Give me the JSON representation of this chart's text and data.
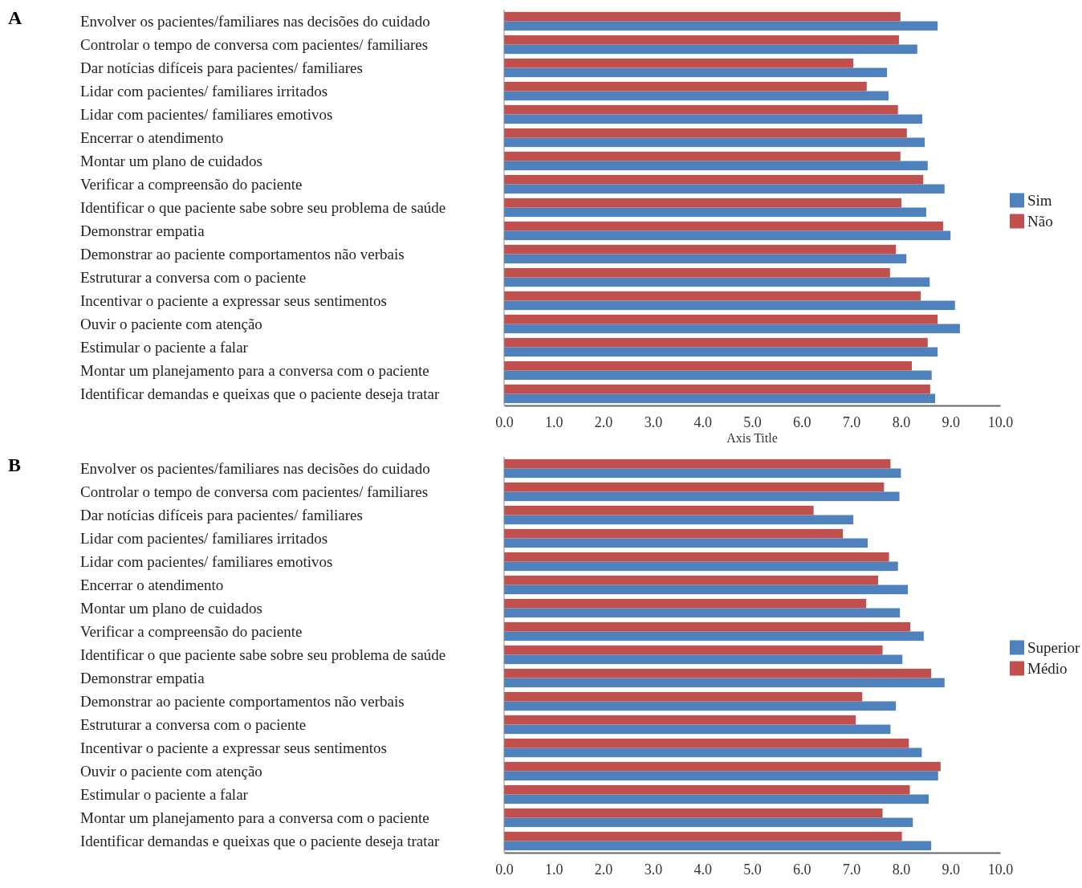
{
  "chart_data": [
    {
      "type": "bar",
      "title": "A",
      "orientation": "horizontal",
      "xlabel": "Axis Title",
      "legend": "right",
      "categories": [
        "Envolver os pacientes/familiares nas decisões do cuidado",
        "Controlar o tempo de conversa com pacientes/ familiares",
        "Dar notícias difíceis para pacientes/ familiares",
        "Lidar com pacientes/ familiares irritados",
        "Lidar com pacientes/ familiares emotivos",
        "Encerrar o atendimento",
        "Montar um plano de cuidados",
        "Verificar a compreensão do paciente",
        "Identificar o que paciente sabe sobre seu problema de saúde",
        "Demonstrar empatia",
        "Demonstrar ao paciente comportamentos não verbais",
        "Estruturar a conversa com o paciente",
        "Incentivar o paciente a expressar seus sentimentos",
        "Ouvir o paciente com atenção",
        "Estimular o paciente a falar",
        "Montar um planejamento para a conversa com o paciente",
        "Identificar demandas e queixas que o paciente deseja tratar"
      ],
      "series": [
        {
          "name": "Sim",
          "color": "#4f81bd",
          "values": [
            8.74,
            8.33,
            7.72,
            7.75,
            8.43,
            8.48,
            8.54,
            8.88,
            8.51,
            9.0,
            8.11,
            8.58,
            9.09,
            9.19,
            8.74,
            8.62,
            8.69
          ]
        },
        {
          "name": "Não",
          "color": "#c0504d",
          "values": [
            7.99,
            7.96,
            7.04,
            7.31,
            7.94,
            8.12,
            7.99,
            8.45,
            8.01,
            8.85,
            7.9,
            7.78,
            8.4,
            8.74,
            8.54,
            8.22,
            8.59
          ]
        }
      ],
      "xlim": [
        0,
        10
      ],
      "xticks": [
        {
          "value": 0,
          "label": "0.0"
        },
        {
          "value": 1,
          "label": "1.0"
        },
        {
          "value": 2,
          "label": "2.0"
        },
        {
          "value": 3,
          "label": "3.0"
        },
        {
          "value": 4,
          "label": "4.0"
        },
        {
          "value": 5,
          "label": "5.0"
        },
        {
          "value": 6,
          "label": "6.0"
        },
        {
          "value": 7,
          "label": "7.0"
        },
        {
          "value": 8,
          "label": "8.0"
        },
        {
          "value": 9,
          "label": "9.0"
        },
        {
          "value": 10,
          "label": "10.0"
        }
      ]
    },
    {
      "type": "bar",
      "title": "B",
      "orientation": "horizontal",
      "legend": "right",
      "categories": [
        "Envolver os pacientes/familiares nas decisões do cuidado",
        "Controlar o tempo de conversa com pacientes/ familiares",
        "Dar notícias difíceis para pacientes/ familiares",
        "Lidar com pacientes/ familiares irritados",
        "Lidar com pacientes/ familiares emotivos",
        "Encerrar o atendimento",
        "Montar um plano de cuidados",
        "Verificar a compreensão do paciente",
        "Identificar o que paciente sabe sobre seu problema de saúde",
        "Demonstrar empatia",
        "Demonstrar ao paciente comportamentos não verbais",
        "Estruturar a conversa com o paciente",
        "Incentivar o paciente a expressar seus sentimentos",
        "Ouvir o paciente com atenção",
        "Estimular o paciente a falar",
        "Montar um planejamento para a conversa com o paciente",
        "Identificar demandas e queixas que o paciente deseja tratar"
      ],
      "series": [
        {
          "name": "Superior",
          "color": "#4f81bd",
          "values": [
            8.0,
            7.97,
            7.04,
            7.33,
            7.94,
            8.14,
            7.98,
            8.46,
            8.03,
            8.88,
            7.9,
            7.79,
            8.42,
            8.75,
            8.56,
            8.24,
            8.61
          ]
        },
        {
          "name": "Médio",
          "color": "#c0504d",
          "values": [
            7.79,
            7.66,
            6.24,
            6.83,
            7.76,
            7.54,
            7.3,
            8.19,
            7.63,
            8.61,
            7.22,
            7.09,
            8.16,
            8.8,
            8.18,
            7.63,
            8.02
          ]
        }
      ],
      "xlim": [
        0,
        10
      ],
      "xticks": [
        {
          "value": 0,
          "label": "0.0"
        },
        {
          "value": 1,
          "label": "1.0"
        },
        {
          "value": 2,
          "label": "2.0"
        },
        {
          "value": 3,
          "label": "3.0"
        },
        {
          "value": 4,
          "label": "4.0"
        },
        {
          "value": 5,
          "label": "5.0"
        },
        {
          "value": 6,
          "label": "6.0"
        },
        {
          "value": 7,
          "label": "7.0"
        },
        {
          "value": 8,
          "label": "8.0"
        },
        {
          "value": 9,
          "label": "9.0"
        },
        {
          "value": 10,
          "label": "10.0"
        }
      ]
    }
  ]
}
